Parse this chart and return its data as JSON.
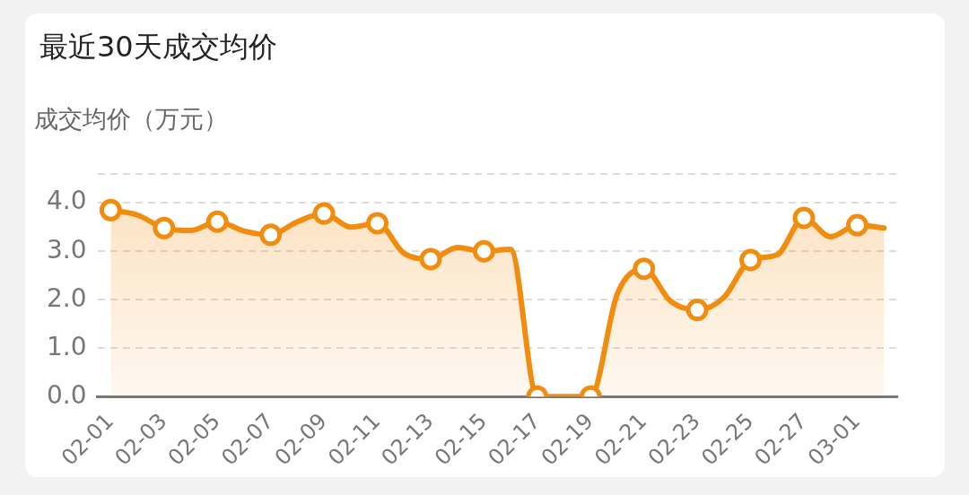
{
  "chart_data": {
    "type": "area",
    "title": "最近30天成交均价",
    "ylabel": "成交均价（万元）",
    "categories": [
      "02-01",
      null,
      "02-03",
      null,
      "02-05",
      null,
      "02-07",
      null,
      "02-09",
      null,
      "02-11",
      null,
      "02-13",
      null,
      "02-15",
      null,
      "02-17",
      null,
      "02-19",
      null,
      "02-21",
      null,
      "02-23",
      null,
      "02-25",
      null,
      "02-27",
      null,
      "03-01",
      null
    ],
    "values": [
      3.85,
      3.75,
      3.48,
      3.43,
      3.61,
      3.42,
      3.34,
      3.61,
      3.78,
      3.5,
      3.58,
      2.96,
      2.84,
      3.08,
      3.0,
      3.04,
      0,
      0,
      0,
      2.12,
      2.64,
      1.97,
      1.79,
      2.05,
      2.82,
      2.93,
      3.69,
      3.3,
      3.54,
      3.48
    ],
    "color": "#f28c0f",
    "ylim": [
      0,
      4.6
    ],
    "yticks": [
      {
        "value": 0,
        "label": "0.0"
      },
      {
        "value": 1,
        "label": "1.0"
      },
      {
        "value": 2,
        "label": "2.0"
      },
      {
        "value": 3,
        "label": "3.0"
      },
      {
        "value": 4,
        "label": "4.0"
      },
      {
        "value": 4.6,
        "label": null
      }
    ],
    "grid": "y",
    "marker": "circle",
    "line_style": "solid"
  }
}
